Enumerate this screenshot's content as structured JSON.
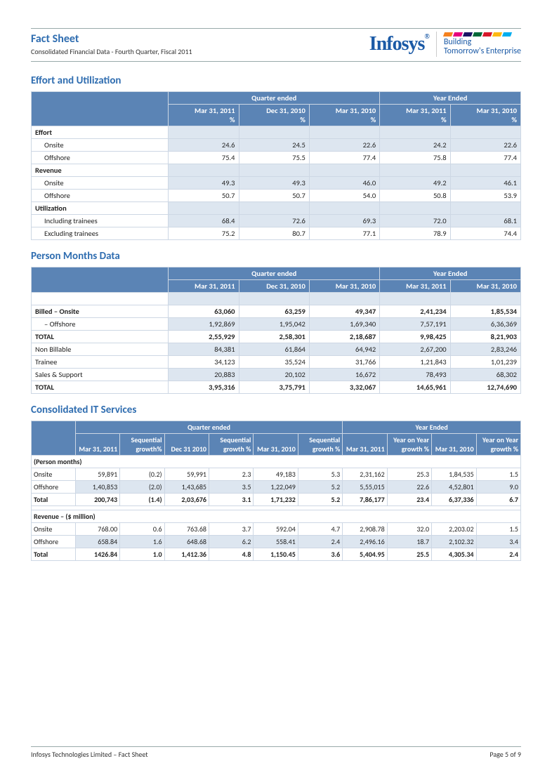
{
  "header": {
    "title": "Fact Sheet",
    "subtitle": "Consolidated Financial Data - Fourth Quarter, Fiscal 2011",
    "logo": "Infosys",
    "tagline1": "Building",
    "tagline2": "Tomorrow's Enterprise",
    "stripe_colors": [
      "#f58220",
      "#e6007e",
      "#1b1464",
      "#006838",
      "#d7182a",
      "#fdb913",
      "#00aeef"
    ]
  },
  "sections": {
    "s1": "Effort and Utilization",
    "s2": "Person Months Data",
    "s3": "Consolidated IT Services"
  },
  "table1": {
    "group1": "Quarter ended",
    "group2": "Year Ended",
    "cols": [
      "Mar 31, 2011 %",
      "Dec 31, 2010 %",
      "Mar 31, 2010 %",
      "Mar 31, 2011 %",
      "Mar 31, 2010 %"
    ],
    "rows": [
      {
        "label": "Effort",
        "type": "header"
      },
      {
        "label": "Onsite",
        "type": "data",
        "shade": true,
        "vals": [
          "24.6",
          "24.5",
          "22.6",
          "24.2",
          "22.6"
        ]
      },
      {
        "label": "Offshore",
        "type": "data",
        "shade": false,
        "vals": [
          "75.4",
          "75.5",
          "77.4",
          "75.8",
          "77.4"
        ]
      },
      {
        "label": "Revenue",
        "type": "header"
      },
      {
        "label": "Onsite",
        "type": "data",
        "shade": true,
        "vals": [
          "49.3",
          "49.3",
          "46.0",
          "49.2",
          "46.1"
        ]
      },
      {
        "label": "Offshore",
        "type": "data",
        "shade": false,
        "vals": [
          "50.7",
          "50.7",
          "54.0",
          "50.8",
          "53.9"
        ]
      },
      {
        "label": "Utilization",
        "type": "header"
      },
      {
        "label": "Including trainees",
        "type": "data",
        "shade": true,
        "vals": [
          "68.4",
          "72.6",
          "69.3",
          "72.0",
          "68.1"
        ]
      },
      {
        "label": "Excluding trainees",
        "type": "data",
        "shade": false,
        "vals": [
          "75.2",
          "80.7",
          "77.1",
          "78.9",
          "74.4"
        ]
      }
    ]
  },
  "table2": {
    "group1": "Quarter ended",
    "group2": "Year Ended",
    "cols": [
      "Mar 31, 2011",
      "Dec 31, 2010",
      "Mar 31, 2010",
      "Mar 31, 2011",
      "Mar 31, 2010"
    ],
    "rows": [
      {
        "label": "Billed – Onsite",
        "bold": true,
        "shade": false,
        "vals": [
          "63,060",
          "63,259",
          "49,347",
          "2,41,234",
          "1,85,534"
        ]
      },
      {
        "label": "– Offshore",
        "indent": true,
        "shade": true,
        "vals": [
          "1,92,869",
          "1,95,042",
          "1,69,340",
          "7,57,191",
          "6,36,369"
        ]
      },
      {
        "label": "TOTAL",
        "bold": true,
        "shade": false,
        "vals": [
          "2,55,929",
          "2,58,301",
          "2,18,687",
          "9,98,425",
          "8,21,903"
        ]
      },
      {
        "label": "Non Billable",
        "shade": true,
        "vals": [
          "84,381",
          "61,864",
          "64,942",
          "2,67,200",
          "2,83,246"
        ]
      },
      {
        "label": "Trainee",
        "shade": false,
        "vals": [
          "34,123",
          "35,524",
          "31,766",
          "1,21,843",
          "1,01,239"
        ]
      },
      {
        "label": "Sales & Support",
        "shade": true,
        "vals": [
          "20,883",
          "20,102",
          "16,672",
          "78,493",
          "68,302"
        ]
      },
      {
        "label": "TOTAL",
        "bold": true,
        "shade": false,
        "vals": [
          "3,95,316",
          "3,75,791",
          "3,32,067",
          "14,65,961",
          "12,74,690"
        ]
      }
    ]
  },
  "table3": {
    "group1": "Quarter ended",
    "group2": "Year Ended",
    "cols": [
      "Mar 31, 2011",
      "Sequential growth%",
      "Dec 31 2010",
      "Sequential growth %",
      "Mar 31, 2010",
      "Sequential growth %",
      "Mar 31, 2011",
      "Year on Year growth %",
      "Mar 31, 2010",
      "Year on Year growth %"
    ],
    "section1": "(Person months)",
    "pm_rows": [
      {
        "label": "Onsite",
        "shade": false,
        "vals": [
          "59,891",
          "(0.2)",
          "59,991",
          "2.3",
          "49,183",
          "5.3",
          "2,31,162",
          "25.3",
          "1,84,535",
          "1.5"
        ]
      },
      {
        "label": "Offshore",
        "shade": true,
        "vals": [
          "1,40,853",
          "(2.0)",
          "1,43,685",
          "3.5",
          "1,22,049",
          "5.2",
          "5,55,015",
          "22.6",
          "4,52,801",
          "9.0"
        ]
      },
      {
        "label": "Total",
        "bold": true,
        "shade": false,
        "vals": [
          "200,743",
          "(1.4)",
          "2,03,676",
          "3.1",
          "1,71,232",
          "5.2",
          "7,86,177",
          "23.4",
          "6,37,336",
          "6.7"
        ]
      }
    ],
    "section2": "Revenue – ($ million)",
    "rev_rows": [
      {
        "label": "Onsite",
        "shade": false,
        "vals": [
          "768.00",
          "0.6",
          "763.68",
          "3.7",
          "592.04",
          "4.7",
          "2,908.78",
          "32.0",
          "2,203.02",
          "1.5"
        ]
      },
      {
        "label": "Offshore",
        "shade": true,
        "vals": [
          "658.84",
          "1.6",
          "648.68",
          "6.2",
          "558.41",
          "2.4",
          "2,496.16",
          "18.7",
          "2,102.32",
          "3.4"
        ]
      },
      {
        "label": "Total",
        "bold": true,
        "shade": false,
        "vals": [
          "1426.84",
          "1.0",
          "1,412.36",
          "4.8",
          "1,150.45",
          "3.6",
          "5,404.95",
          "25.5",
          "4,305.34",
          "2.4"
        ]
      }
    ]
  },
  "footer": {
    "left": "Infosys Technologies Limited – Fact Sheet",
    "right": "Page 5 of 9"
  }
}
